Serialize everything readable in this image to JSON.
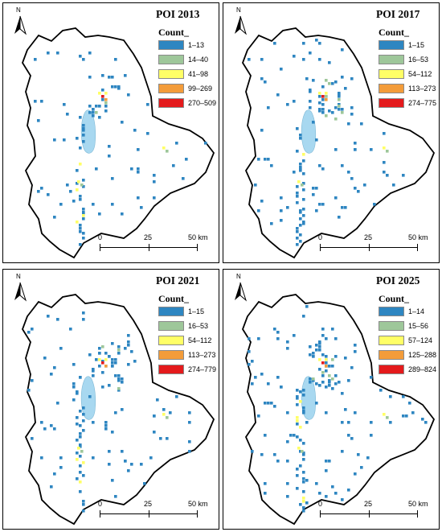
{
  "legend_title": "Count_",
  "classes": [
    {
      "color": "#2e86c1"
    },
    {
      "color": "#9ec79a"
    },
    {
      "color": "#ffff66"
    },
    {
      "color": "#f39c3a"
    },
    {
      "color": "#e41a1c"
    }
  ],
  "lake_color": "#a8d8f0",
  "north_label": "N",
  "scale": {
    "labels": [
      "0",
      "25",
      "50 km"
    ]
  },
  "panels": [
    {
      "title": "POI 2013",
      "ranges": [
        "1–13",
        "14–40",
        "41–98",
        "99–269",
        "270–509"
      ],
      "density": 0.55,
      "seed": 11
    },
    {
      "title": "POI 2017",
      "ranges": [
        "1–15",
        "16–53",
        "54–112",
        "113–273",
        "274–775"
      ],
      "density": 0.75,
      "seed": 23
    },
    {
      "title": "POI 2021",
      "ranges": [
        "1–15",
        "16–53",
        "54–112",
        "113–273",
        "274–779"
      ],
      "density": 0.8,
      "seed": 37
    },
    {
      "title": "POI 2025",
      "ranges": [
        "1–14",
        "15–56",
        "57–124",
        "125–288",
        "289–824"
      ],
      "density": 1.0,
      "seed": 53
    }
  ]
}
